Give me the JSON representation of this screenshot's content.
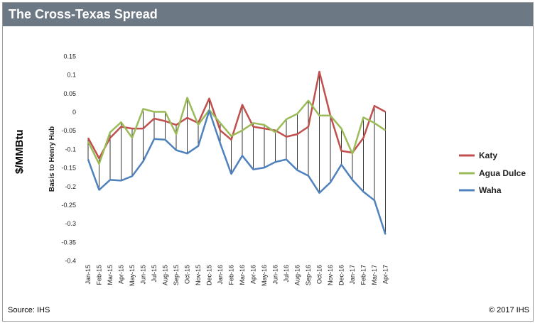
{
  "header": {
    "title": "The Cross-Texas Spread"
  },
  "units_label": "$/MMBtu",
  "footer": {
    "source": "Source: IHS",
    "copyright": "© 2017 IHS"
  },
  "colors": {
    "katy": "#c0504d",
    "agua_dulce": "#9bbb59",
    "waha": "#4f81bd",
    "header_bg": "#6d7885"
  },
  "chart_data": {
    "type": "line",
    "title": "",
    "xlabel": "",
    "ylabel": "Basis to Henry Hub",
    "ylim": [
      -0.4,
      0.15
    ],
    "yticks": [
      "0.15",
      "0.1",
      "0.05",
      "0",
      "-0.05",
      "-0.1",
      "-0.15",
      "-0.2",
      "-0.25",
      "-0.3",
      "-0.35",
      "-0.4"
    ],
    "grid": false,
    "legend": "right",
    "categories": [
      "Jan-15",
      "Feb-15",
      "Mar-15",
      "Apr-15",
      "May-15",
      "Jun-15",
      "Jul-15",
      "Aug-15",
      "Sep-15",
      "Oct-15",
      "Nov-15",
      "Dec-15",
      "Jan-16",
      "Feb-16",
      "Mar-16",
      "Apr-16",
      "May-16",
      "Jun-16",
      "Jul-16",
      "Aug-16",
      "Sep-16",
      "Oct-16",
      "Nov-16",
      "Dec-16",
      "Jan-17",
      "Feb-17",
      "Mar-17",
      "Apr-17"
    ],
    "series": [
      {
        "name": "Katy",
        "values": [
          -0.07,
          -0.125,
          -0.07,
          -0.04,
          -0.045,
          -0.045,
          -0.018,
          -0.025,
          -0.035,
          -0.016,
          -0.03,
          0.036,
          -0.05,
          -0.075,
          0.019,
          -0.04,
          -0.045,
          -0.05,
          -0.067,
          -0.06,
          -0.04,
          0.108,
          -0.01,
          -0.105,
          -0.11,
          -0.07,
          0.016,
          0.0
        ]
      },
      {
        "name": "Agua Dulce",
        "values": [
          -0.08,
          -0.14,
          -0.055,
          -0.028,
          -0.07,
          0.008,
          0.0,
          0.0,
          -0.06,
          0.038,
          -0.035,
          0.005,
          -0.03,
          -0.065,
          -0.05,
          -0.03,
          -0.035,
          -0.055,
          -0.02,
          -0.005,
          0.03,
          -0.01,
          -0.01,
          -0.045,
          -0.113,
          -0.015,
          -0.03,
          -0.05
        ]
      },
      {
        "name": "Waha",
        "values": [
          -0.128,
          -0.21,
          -0.183,
          -0.185,
          -0.173,
          -0.133,
          -0.073,
          -0.075,
          -0.103,
          -0.112,
          -0.092,
          0.003,
          -0.085,
          -0.167,
          -0.118,
          -0.155,
          -0.15,
          -0.135,
          -0.128,
          -0.157,
          -0.172,
          -0.218,
          -0.19,
          -0.142,
          -0.183,
          -0.215,
          -0.238,
          -0.33
        ]
      }
    ]
  }
}
